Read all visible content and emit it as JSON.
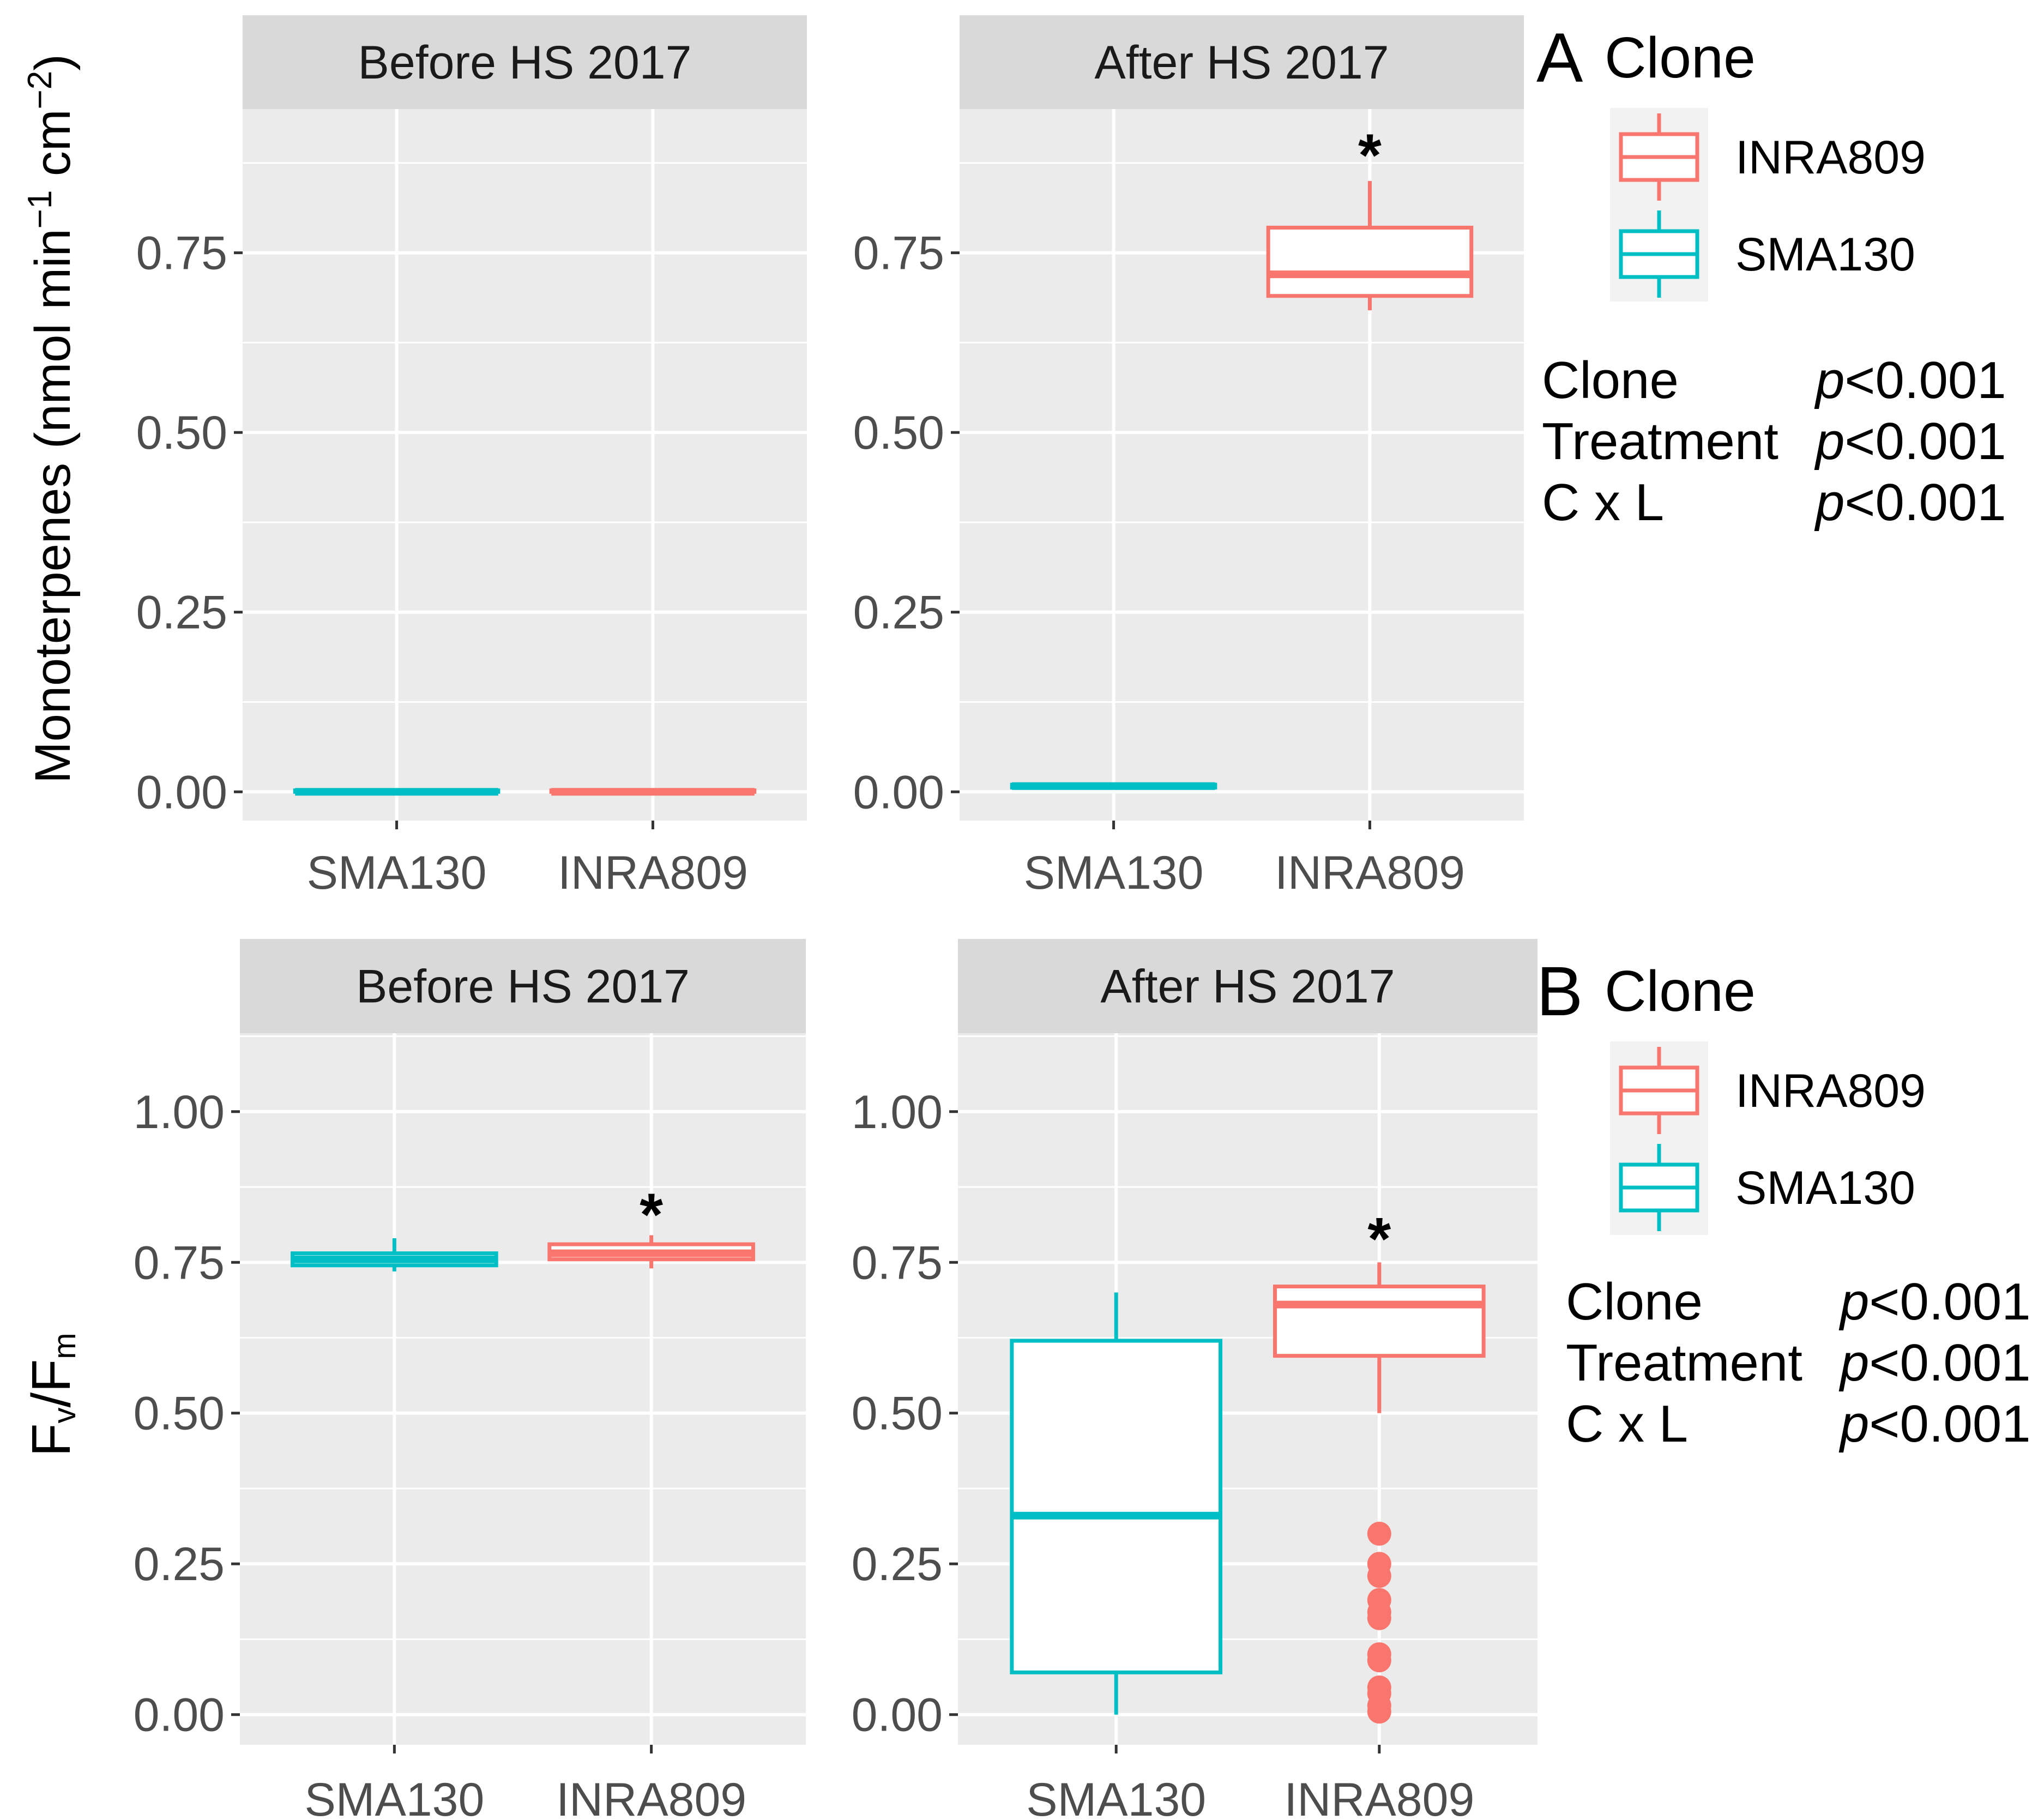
{
  "colors": {
    "INRA809": "#F8766D",
    "SMA130": "#00BFC4",
    "panel_bg": "#EBEBEB",
    "strip_bg": "#D9D9D9",
    "grid": "#FFFFFF",
    "tick_text": "#4D4D4D"
  },
  "chart_data": [
    {
      "type": "boxplot",
      "panel_label": "A",
      "ylabel": {
        "main": "Monoterpenes  (nmol min",
        "sup1": "−1",
        "mid": " cm",
        "sup2": "−2",
        "end": ")"
      },
      "ylim": [
        -0.04,
        0.95
      ],
      "yticks": [
        0.0,
        0.25,
        0.5,
        0.75
      ],
      "ytick_labels": [
        "0.00",
        "0.25",
        "0.50",
        "0.75"
      ],
      "categories": [
        "SMA130",
        "INRA809"
      ],
      "legend": {
        "title": "Clone",
        "entries": [
          "INRA809",
          "SMA130"
        ]
      },
      "stats": [
        {
          "term": "Clone",
          "p": "p",
          "val": "<0.001"
        },
        {
          "term": "Treatment",
          "p": "p",
          "val": "<0.001"
        },
        {
          "term": "C x L",
          "p": "p",
          "val": "<0.001"
        }
      ],
      "facets": [
        {
          "title": "Before HS 2017",
          "boxes": [
            {
              "clone": "SMA130",
              "lower": 0.0,
              "q1": 0.0,
              "median": 0.0,
              "q3": 0.002,
              "upper": 0.003,
              "outliers": []
            },
            {
              "clone": "INRA809",
              "lower": 0.0,
              "q1": 0.0,
              "median": 0.0,
              "q3": 0.002,
              "upper": 0.003,
              "outliers": []
            }
          ],
          "significance": []
        },
        {
          "title": "After HS 2017",
          "boxes": [
            {
              "clone": "SMA130",
              "lower": 0.004,
              "q1": 0.006,
              "median": 0.008,
              "q3": 0.01,
              "upper": 0.012,
              "outliers": []
            },
            {
              "clone": "INRA809",
              "lower": 0.67,
              "q1": 0.69,
              "median": 0.72,
              "q3": 0.785,
              "upper": 0.85,
              "outliers": []
            }
          ],
          "significance": [
            {
              "category": "INRA809",
              "y": 0.895,
              "text": "*"
            }
          ]
        }
      ]
    },
    {
      "type": "boxplot",
      "panel_label": "B",
      "ylabel": {
        "main": "F",
        "sub1": "v",
        "mid": "/F",
        "sub2": "m"
      },
      "ylim": [
        -0.05,
        1.13
      ],
      "yticks": [
        0.0,
        0.25,
        0.5,
        0.75,
        1.0
      ],
      "ytick_labels": [
        "0.00",
        "0.25",
        "0.50",
        "0.75",
        "1.00"
      ],
      "categories": [
        "SMA130",
        "INRA809"
      ],
      "legend": {
        "title": "Clone",
        "entries": [
          "INRA809",
          "SMA130"
        ]
      },
      "stats": [
        {
          "term": "Clone",
          "p": "p",
          "val": "<0.001"
        },
        {
          "term": "Treatment",
          "p": "p",
          "val": "<0.001"
        },
        {
          "term": "C x L",
          "p": "p",
          "val": "<0.001"
        }
      ],
      "facets": [
        {
          "title": "Before HS 2017",
          "boxes": [
            {
              "clone": "SMA130",
              "lower": 0.735,
              "q1": 0.745,
              "median": 0.755,
              "q3": 0.765,
              "upper": 0.79,
              "outliers": []
            },
            {
              "clone": "INRA809",
              "lower": 0.74,
              "q1": 0.755,
              "median": 0.765,
              "q3": 0.78,
              "upper": 0.795,
              "outliers": []
            }
          ],
          "significance": [
            {
              "category": "INRA809",
              "y": 0.84,
              "text": "*"
            }
          ]
        },
        {
          "title": "After HS 2017",
          "boxes": [
            {
              "clone": "SMA130",
              "lower": 0.0,
              "q1": 0.07,
              "median": 0.33,
              "q3": 0.62,
              "upper": 0.7,
              "outliers": []
            },
            {
              "clone": "INRA809",
              "lower": 0.5,
              "q1": 0.595,
              "median": 0.68,
              "q3": 0.71,
              "upper": 0.75,
              "outliers": [
                0.3,
                0.25,
                0.23,
                0.19,
                0.17,
                0.16,
                0.1,
                0.09,
                0.045,
                0.035,
                0.015,
                0.005
              ]
            }
          ],
          "significance": [
            {
              "category": "INRA809",
              "y": 0.8,
              "text": "*"
            }
          ]
        }
      ]
    }
  ]
}
